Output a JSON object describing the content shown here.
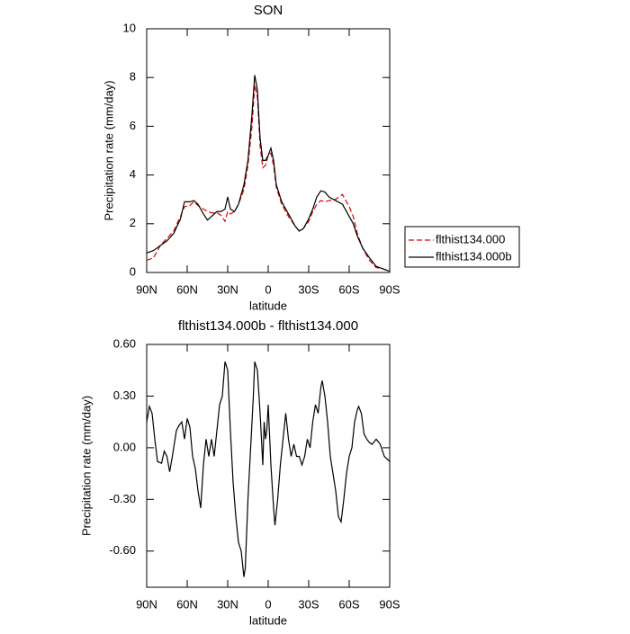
{
  "chart_data": [
    {
      "type": "line",
      "title": "SON",
      "xlabel": "latitude",
      "ylabel": "Precipitation rate (mm/day)",
      "x": [
        90,
        85,
        80,
        75,
        70,
        65,
        62,
        58,
        55,
        52,
        48,
        45,
        42,
        38,
        35,
        32,
        30,
        28,
        25,
        22,
        18,
        15,
        12,
        10,
        8,
        6,
        4,
        2,
        0,
        -2,
        -4,
        -6,
        -10,
        -15,
        -20,
        -23,
        -26,
        -30,
        -33,
        -36,
        -39,
        -42,
        -45,
        -50,
        -55,
        -60,
        -63,
        -66,
        -70,
        -75,
        -80,
        -85,
        -90
      ],
      "series": [
        {
          "name": "flthist134.000",
          "color": "#dd0000",
          "style": "dashed",
          "values": [
            0.5,
            0.6,
            1.1,
            1.4,
            1.7,
            2.3,
            2.7,
            2.75,
            2.9,
            2.75,
            2.6,
            2.5,
            2.45,
            2.45,
            2.35,
            2.1,
            2.5,
            2.4,
            2.5,
            2.8,
            3.4,
            4.4,
            6.0,
            7.7,
            7.2,
            5.2,
            4.3,
            4.4,
            4.8,
            4.9,
            4.4,
            3.5,
            2.8,
            2.3,
            1.9,
            1.7,
            1.8,
            2.1,
            2.5,
            2.8,
            2.95,
            2.9,
            2.95,
            3.0,
            3.2,
            2.7,
            2.3,
            1.6,
            1.0,
            0.5,
            0.2,
            0.15,
            0.05
          ]
        },
        {
          "name": "flthist134.000b",
          "color": "#000000",
          "style": "solid",
          "values": [
            0.8,
            0.9,
            1.1,
            1.3,
            1.6,
            2.2,
            2.9,
            2.9,
            2.95,
            2.8,
            2.4,
            2.15,
            2.3,
            2.5,
            2.5,
            2.6,
            3.1,
            2.6,
            2.5,
            2.8,
            3.6,
            4.6,
            6.5,
            8.1,
            7.5,
            5.5,
            4.6,
            4.6,
            4.8,
            5.1,
            4.6,
            3.6,
            2.9,
            2.4,
            1.9,
            1.7,
            1.8,
            2.2,
            2.6,
            3.1,
            3.35,
            3.3,
            3.1,
            2.95,
            2.8,
            2.3,
            2.0,
            1.5,
            1.0,
            0.6,
            0.25,
            0.15,
            0.05
          ]
        }
      ],
      "xlim": [
        90,
        -90
      ],
      "xticks": [
        {
          "value": 90,
          "label": "90N"
        },
        {
          "value": 60,
          "label": "60N"
        },
        {
          "value": 30,
          "label": "30N"
        },
        0,
        {
          "value": -30,
          "label": "30S"
        },
        {
          "value": -60,
          "label": "60S"
        },
        {
          "value": -90,
          "label": "90S"
        }
      ],
      "ylim": [
        0,
        10
      ],
      "yticks": [
        0,
        2,
        4,
        6,
        8,
        10
      ],
      "legend": "outside-right"
    },
    {
      "type": "line",
      "title": "flthist134.000b - flthist134.000",
      "xlabel": "latitude",
      "ylabel": "Precipitation rate (mm/day)",
      "x": [
        90,
        88,
        86,
        84,
        82,
        79,
        77,
        75,
        73,
        71,
        68,
        66,
        64,
        62,
        60,
        58,
        56,
        54,
        52,
        50,
        48,
        46,
        44,
        42,
        40,
        38,
        36,
        34,
        32,
        30,
        28,
        26,
        24,
        22,
        20,
        18,
        17,
        15,
        13,
        11,
        10,
        8,
        6,
        4,
        3,
        2,
        1,
        0,
        -2,
        -4,
        -5,
        -7,
        -9,
        -11,
        -13,
        -15,
        -17,
        -19,
        -21,
        -23,
        -25,
        -27,
        -29,
        -31,
        -33,
        -35,
        -37,
        -39,
        -40,
        -42,
        -44,
        -46,
        -48,
        -50,
        -52,
        -54,
        -56,
        -58,
        -60,
        -62,
        -64,
        -66,
        -67,
        -69,
        -71,
        -73,
        -75,
        -77,
        -80,
        -83,
        -86,
        -90
      ],
      "values": [
        0.15,
        0.24,
        0.2,
        0.05,
        -0.08,
        -0.09,
        -0.02,
        -0.05,
        -0.14,
        -0.05,
        0.1,
        0.13,
        0.15,
        0.05,
        0.17,
        0.12,
        -0.05,
        -0.12,
        -0.25,
        -0.35,
        -0.1,
        0.05,
        -0.05,
        0.05,
        -0.05,
        0.1,
        0.25,
        0.3,
        0.5,
        0.45,
        0.1,
        -0.2,
        -0.4,
        -0.55,
        -0.6,
        -0.75,
        -0.7,
        -0.3,
        0.0,
        0.3,
        0.5,
        0.45,
        0.2,
        -0.1,
        0.15,
        0.05,
        0.1,
        0.25,
        -0.1,
        -0.35,
        -0.45,
        -0.3,
        -0.1,
        0.05,
        0.2,
        0.05,
        -0.05,
        0.02,
        -0.05,
        -0.05,
        -0.1,
        -0.05,
        0.05,
        0.0,
        0.15,
        0.25,
        0.2,
        0.35,
        0.39,
        0.3,
        0.15,
        -0.05,
        -0.15,
        -0.25,
        -0.4,
        -0.43,
        -0.3,
        -0.15,
        -0.05,
        0.0,
        0.15,
        0.22,
        0.24,
        0.2,
        0.08,
        0.05,
        0.03,
        0.02,
        0.05,
        0.02,
        -0.05,
        -0.08
      ],
      "color": "#000000",
      "xlim": [
        90,
        -90
      ],
      "xticks": [
        {
          "value": 90,
          "label": "90N"
        },
        {
          "value": 60,
          "label": "60N"
        },
        {
          "value": 30,
          "label": "30N"
        },
        0,
        {
          "value": -30,
          "label": "30S"
        },
        {
          "value": -60,
          "label": "60S"
        },
        {
          "value": -90,
          "label": "90S"
        }
      ],
      "ylim": [
        -0.81,
        0.6
      ],
      "yticks": [
        {
          "value": -0.6,
          "label": "-0.60"
        },
        {
          "value": -0.3,
          "label": "-0.30"
        },
        {
          "value": 0,
          "label": "0.00"
        },
        {
          "value": 0.3,
          "label": "0.30"
        },
        {
          "value": 0.6,
          "label": "0.60"
        }
      ]
    }
  ]
}
